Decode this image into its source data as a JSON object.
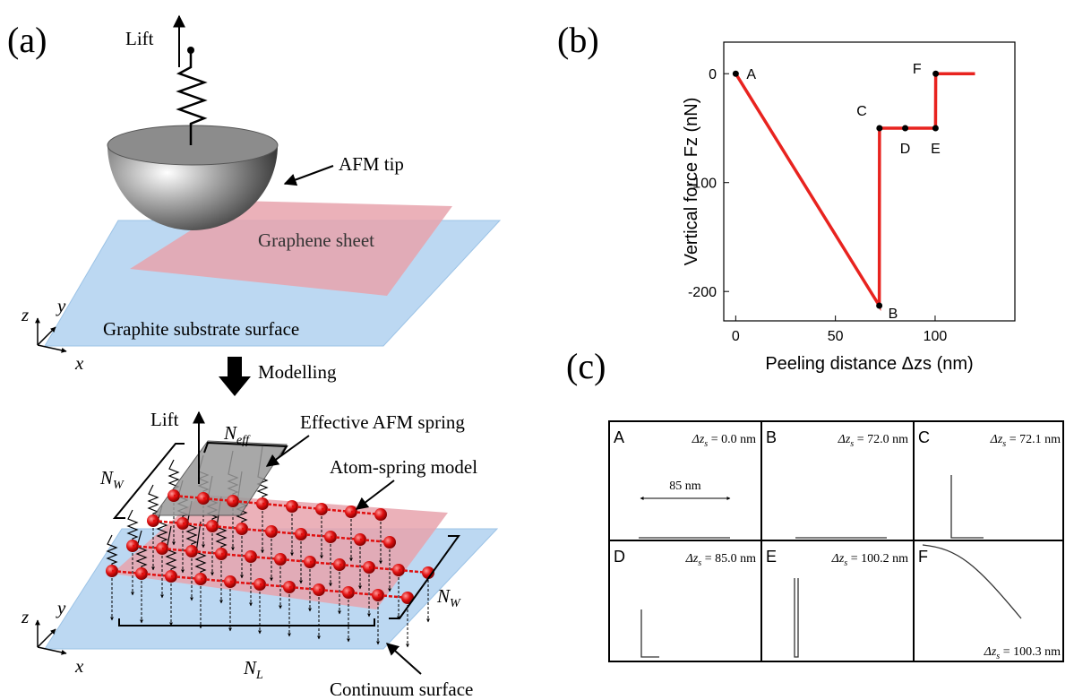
{
  "panel_a": {
    "label": "(a)",
    "top": {
      "lift": "Lift",
      "tip": "AFM tip",
      "sheet": "Graphene sheet",
      "substrate": "Graphite substrate surface",
      "axes": [
        "z",
        "y",
        "x"
      ]
    },
    "arrow": "Modelling",
    "bottom": {
      "lift": "Lift",
      "n_eff": {
        "main": "N",
        "sub": "eff"
      },
      "spring": "Effective AFM spring",
      "n_w_left": {
        "main": "N",
        "sub": "W"
      },
      "model": "Atom-spring model",
      "n_w_right": {
        "main": "N",
        "sub": "W"
      },
      "n_l": {
        "main": "N",
        "sub": "L"
      },
      "surface": "Continuum surface",
      "axes": [
        "z",
        "y",
        "x"
      ]
    }
  },
  "panel_b_label": "(b)",
  "chart_data": {
    "type": "line",
    "xlabel": "Peeling distance Δzs (nm)",
    "ylabel": "Vertical force Fz (nN)",
    "x": [
      0,
      72,
      72.1,
      85,
      100.2,
      100.3,
      120
    ],
    "values": [
      0,
      -213,
      -50,
      -50,
      -50,
      0,
      0
    ],
    "point_labels": [
      "A",
      "B",
      "C",
      "D",
      "E",
      "F",
      null
    ],
    "color": "#e8231f",
    "xlim": [
      -6,
      140
    ],
    "ylim": [
      -227,
      29
    ],
    "xticks": [
      0,
      50,
      100
    ],
    "yticks": [
      -200,
      -100,
      0
    ]
  },
  "panel_c": {
    "label": "(c)",
    "scale": "85 nm",
    "cells": [
      {
        "letter": "A",
        "caption": {
          "pre": "Δz",
          "sub": "s",
          "post": " = 0.0 nm"
        }
      },
      {
        "letter": "B",
        "caption": {
          "pre": "Δz",
          "sub": "s",
          "post": " = 72.0 nm"
        }
      },
      {
        "letter": "C",
        "caption": {
          "pre": "Δz",
          "sub": "s",
          "post": " = 72.1 nm"
        }
      },
      {
        "letter": "D",
        "caption": {
          "pre": "Δz",
          "sub": "s",
          "post": " = 85.0 nm"
        }
      },
      {
        "letter": "E",
        "caption": {
          "pre": "Δz",
          "sub": "s",
          "post": " = 100.2 nm"
        }
      },
      {
        "letter": "F",
        "caption": {
          "pre": "Δz",
          "sub": "s",
          "post": " = 100.3 nm"
        }
      }
    ]
  }
}
